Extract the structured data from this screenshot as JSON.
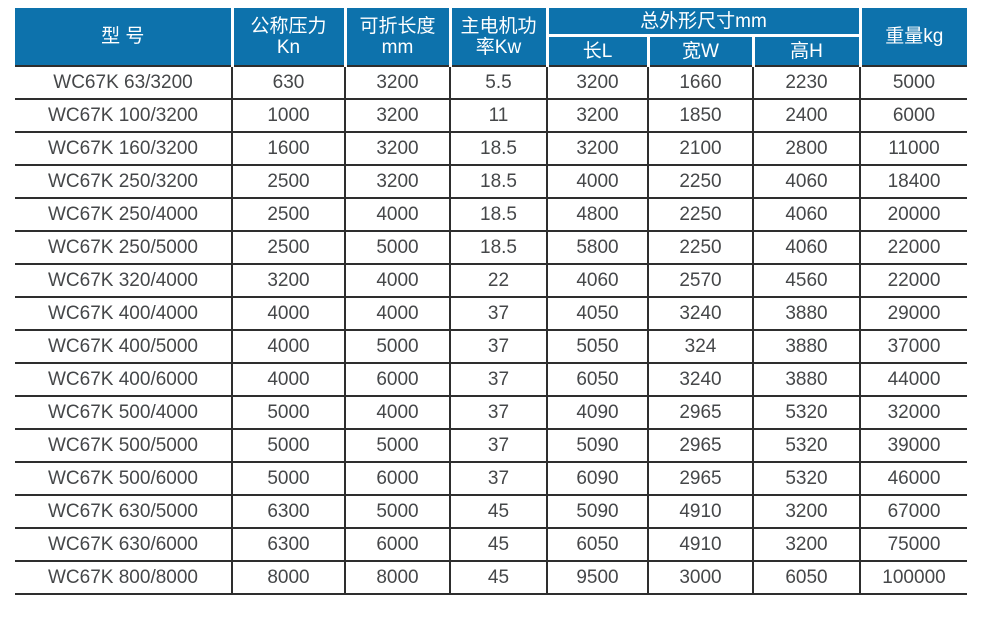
{
  "table": {
    "headers": {
      "model": "型 号",
      "pressure_line1": "公称压力",
      "pressure_line2": "Kn",
      "fold_length_line1": "可折长度",
      "fold_length_line2": "mm",
      "motor_power_line1": "主电机功",
      "motor_power_line2": "率Kw",
      "dimensions_group": "总外形尺寸mm",
      "dim_length": "长L",
      "dim_width": "宽W",
      "dim_height": "高H",
      "weight": "重量kg"
    },
    "rows": [
      [
        "WC67K 63/3200",
        "630",
        "3200",
        "5.5",
        "3200",
        "1660",
        "2230",
        "5000"
      ],
      [
        "WC67K 100/3200",
        "1000",
        "3200",
        "11",
        "3200",
        "1850",
        "2400",
        "6000"
      ],
      [
        "WC67K 160/3200",
        "1600",
        "3200",
        "18.5",
        "3200",
        "2100",
        "2800",
        "11000"
      ],
      [
        "WC67K 250/3200",
        "2500",
        "3200",
        "18.5",
        "4000",
        "2250",
        "4060",
        "18400"
      ],
      [
        "WC67K 250/4000",
        "2500",
        "4000",
        "18.5",
        "4800",
        "2250",
        "4060",
        "20000"
      ],
      [
        "WC67K 250/5000",
        "2500",
        "5000",
        "18.5",
        "5800",
        "2250",
        "4060",
        "22000"
      ],
      [
        "WC67K 320/4000",
        "3200",
        "4000",
        "22",
        "4060",
        "2570",
        "4560",
        "22000"
      ],
      [
        "WC67K 400/4000",
        "4000",
        "4000",
        "37",
        "4050",
        "3240",
        "3880",
        "29000"
      ],
      [
        "WC67K 400/5000",
        "4000",
        "5000",
        "37",
        "5050",
        "324",
        "3880",
        "37000"
      ],
      [
        "WC67K 400/6000",
        "4000",
        "6000",
        "37",
        "6050",
        "3240",
        "3880",
        "44000"
      ],
      [
        "WC67K 500/4000",
        "5000",
        "4000",
        "37",
        "4090",
        "2965",
        "5320",
        "32000"
      ],
      [
        "WC67K 500/5000",
        "5000",
        "5000",
        "37",
        "5090",
        "2965",
        "5320",
        "39000"
      ],
      [
        "WC67K 500/6000",
        "5000",
        "6000",
        "37",
        "6090",
        "2965",
        "5320",
        "46000"
      ],
      [
        "WC67K 630/5000",
        "6300",
        "5000",
        "45",
        "5090",
        "4910",
        "3200",
        "67000"
      ],
      [
        "WC67K 630/6000",
        "6300",
        "6000",
        "45",
        "6050",
        "4910",
        "3200",
        "75000"
      ],
      [
        "WC67K 800/8000",
        "8000",
        "8000",
        "45",
        "9500",
        "3000",
        "6050",
        "100000"
      ]
    ],
    "colors": {
      "header_bg": "#0d72ac",
      "header_text": "#ffffff",
      "body_border": "#2e2e2e",
      "body_text": "#454749"
    }
  }
}
